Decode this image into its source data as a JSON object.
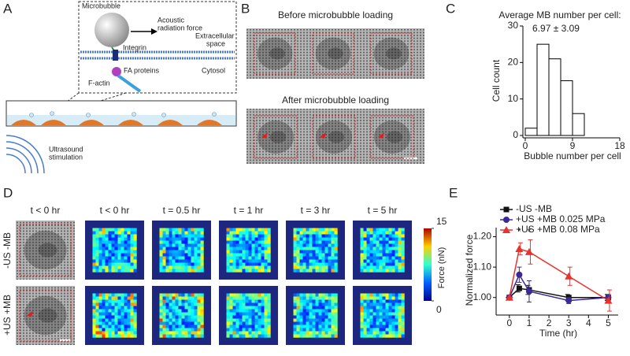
{
  "panel_labels": [
    "A",
    "B",
    "C",
    "D",
    "E"
  ],
  "panel_a": {
    "microbubble": "Microbubble",
    "force": [
      "Acoustic",
      "radiation force"
    ],
    "extracellular": [
      "Extracellular",
      "space"
    ],
    "integrin": "Integrin",
    "fa": "FA proteins",
    "factin": "F-actin",
    "cytosol": "Cytosol",
    "ultrasound": [
      "Ultrasound",
      "stimulation"
    ]
  },
  "panel_b": {
    "before": "Before microbubble loading",
    "after": "After microbubble loading"
  },
  "panel_d": {
    "headers": [
      "t < 0 hr",
      "t < 0 hr",
      "t = 0.5 hr",
      "t = 1 hr",
      "t = 3 hr",
      "t = 5 hr"
    ],
    "rows": [
      "-US -MB",
      "+US +MB"
    ],
    "colorbar": {
      "label": "Force (nN)",
      "ticks": [
        0,
        15
      ]
    }
  },
  "chart_data": [
    {
      "type": "histogram",
      "title": "Average MB number per cell:",
      "subtitle": "6.97 ± 3.09",
      "bins": [
        0,
        2.25,
        4.5,
        6.75,
        9,
        11.25
      ],
      "values": [
        2,
        25,
        21,
        15,
        6
      ],
      "color": "#ffffff",
      "edgecolor": "#000000",
      "xlabel": "Bubble number per cell",
      "ylabel": "Cell count",
      "xlim": [
        0,
        18
      ],
      "xticks": [
        0,
        9,
        18
      ],
      "ylim": [
        0,
        30
      ],
      "yticks": [
        0,
        10,
        20,
        30
      ]
    },
    {
      "type": "line",
      "x": [
        0,
        0.5,
        1,
        3,
        5
      ],
      "series": [
        {
          "name": "-US -MB",
          "color": "#111111",
          "marker": "square",
          "values": [
            1.0,
            1.03,
            1.025,
            1.0,
            1.0
          ],
          "errors": [
            0,
            0.012,
            0.015,
            0.01,
            0.01
          ]
        },
        {
          "name": "+US +MB 0.025 MPa",
          "color": "#3b2a96",
          "marker": "circle",
          "values": [
            1.0,
            1.075,
            1.02,
            0.99,
            1.0
          ],
          "errors": [
            0,
            0.025,
            0.035,
            0.01,
            0.01
          ]
        },
        {
          "name": "+US +MB 0.08 MPa",
          "color": "#e8322c",
          "marker": "triangle",
          "values": [
            1.0,
            1.16,
            1.15,
            1.07,
            0.99
          ],
          "errors": [
            0,
            0.02,
            0.04,
            0.03,
            0.035
          ]
        }
      ],
      "xlabel": "Time (hr)",
      "ylabel": "Normalized force",
      "xlim": [
        -0.55,
        5.5
      ],
      "xticks": [
        0,
        1,
        2,
        3,
        4,
        5
      ],
      "ylim": [
        0.95,
        1.23
      ],
      "yticks": [
        {
          "value": 1.0,
          "label": "1.00"
        },
        {
          "value": 1.1,
          "label": "1.10"
        },
        {
          "value": 1.2,
          "label": "1.20"
        }
      ],
      "legend": "upper left",
      "annotations": [
        {
          "x": 0.5,
          "text": "*"
        },
        {
          "x": 1,
          "text": "*"
        }
      ]
    }
  ]
}
